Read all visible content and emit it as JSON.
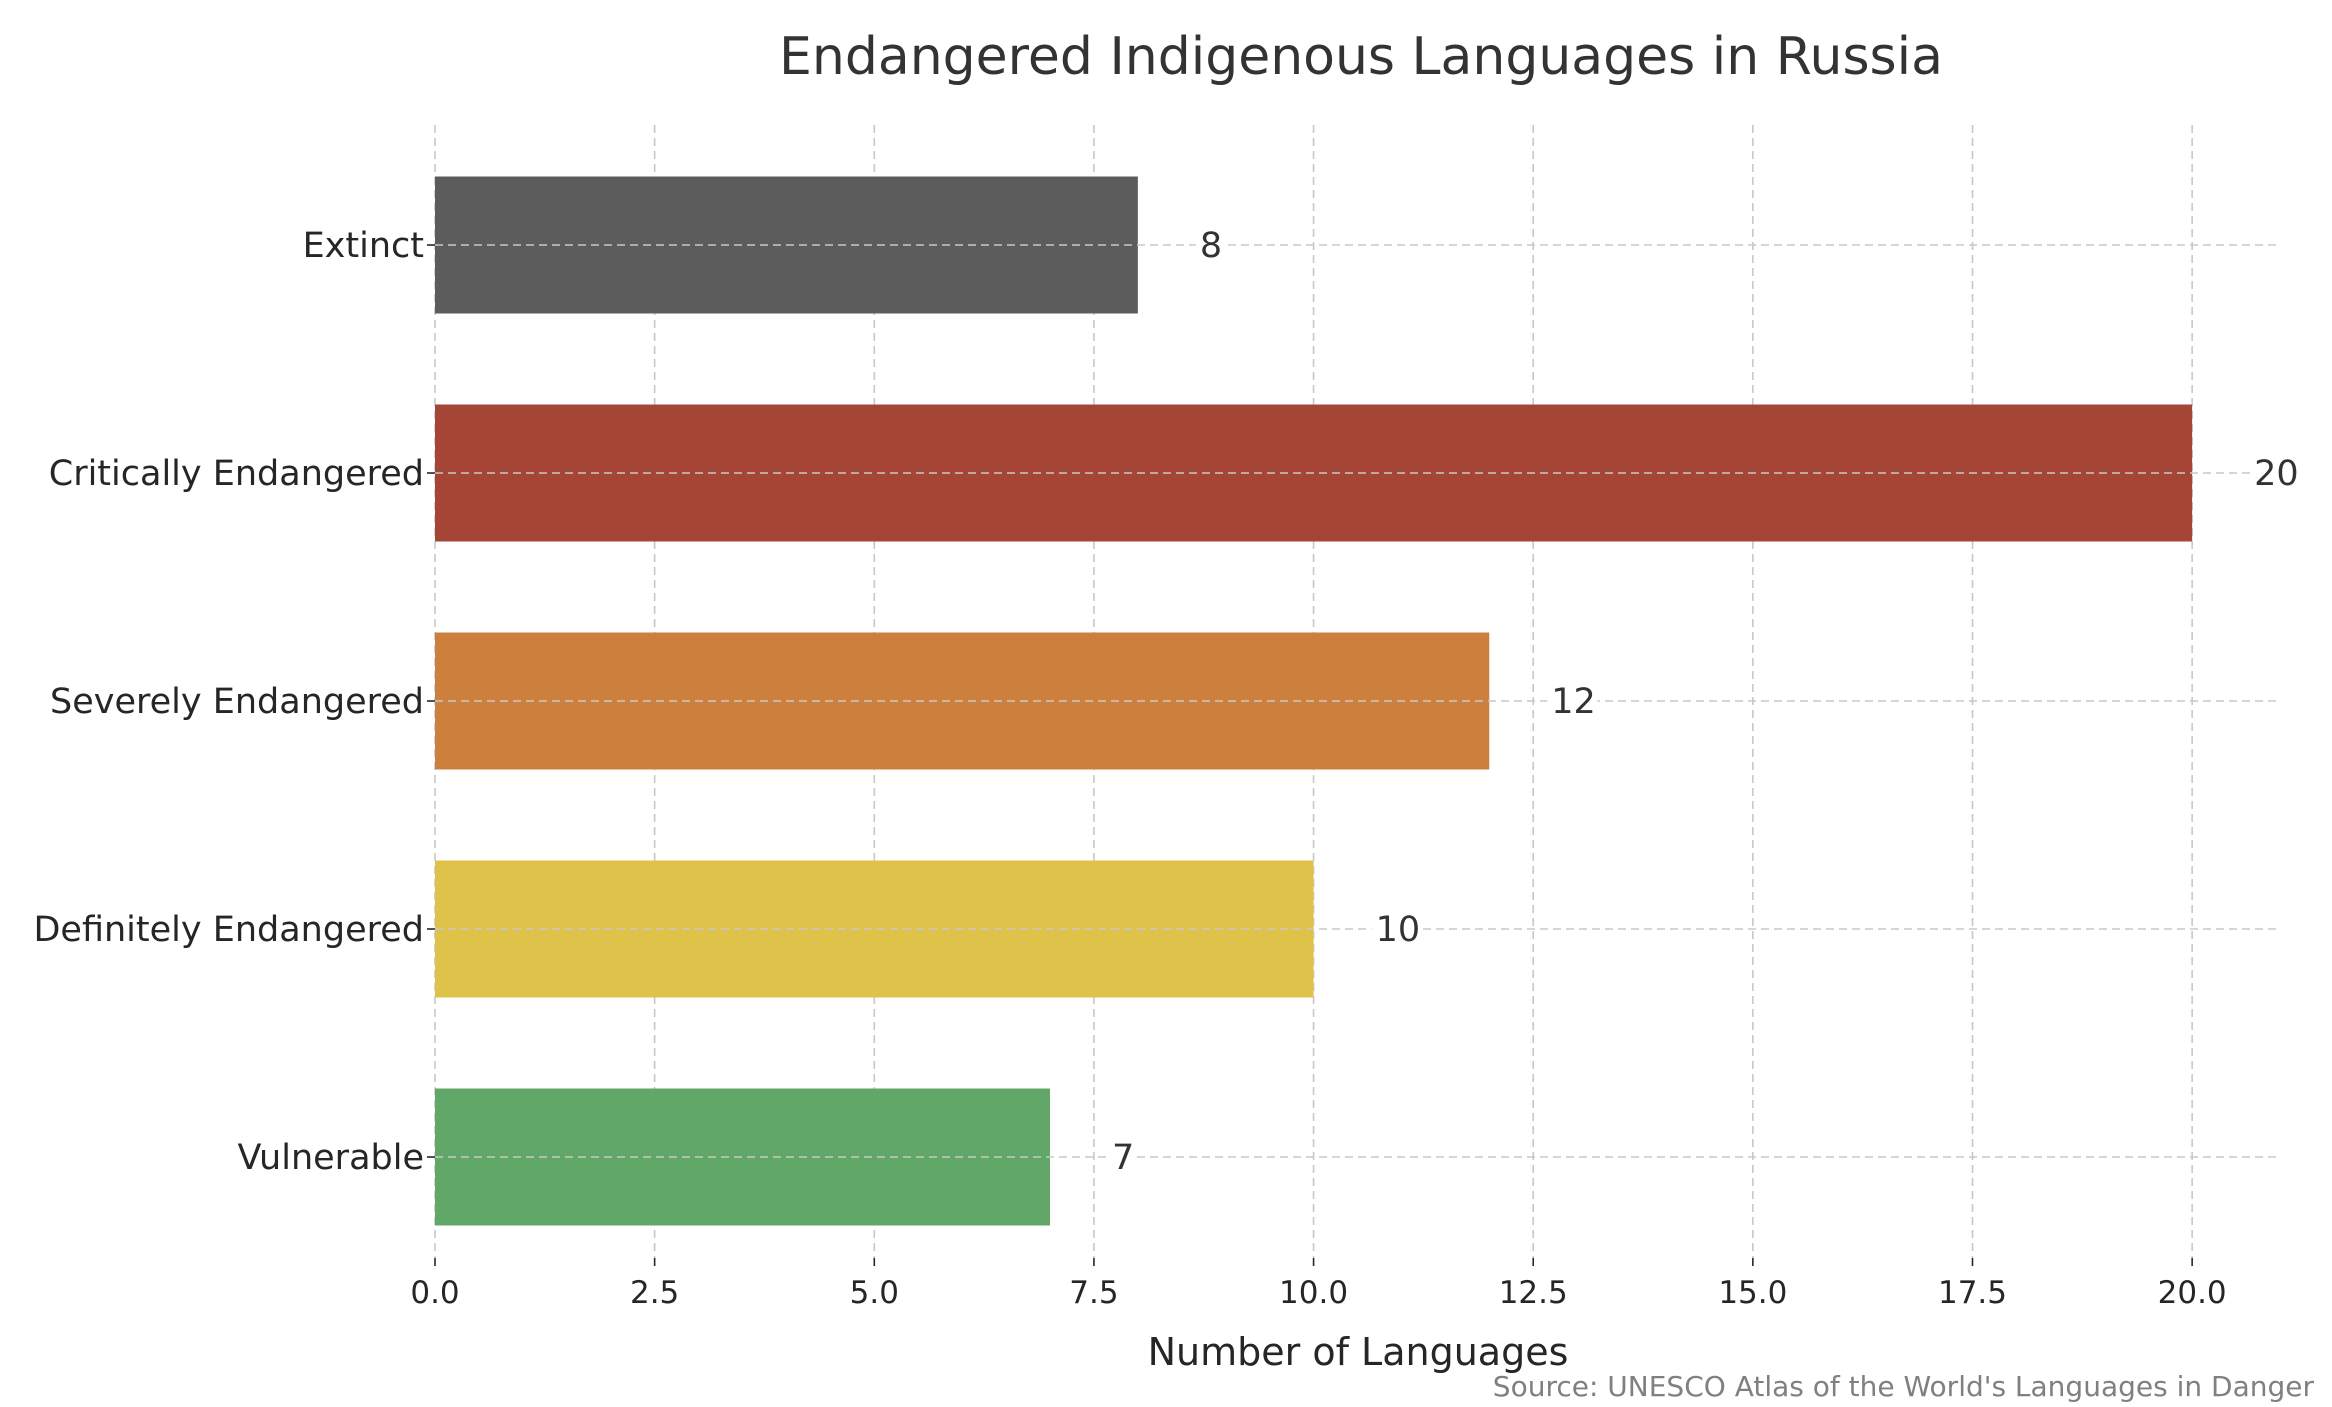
{
  "chart_data": {
    "type": "bar",
    "orientation": "horizontal",
    "title": "Endangered Indigenous Languages in Russia",
    "xlabel": "Number of Languages",
    "ylabel": "",
    "categories": [
      "Extinct",
      "Critically Endangered",
      "Severely Endangered",
      "Definitely Endangered",
      "Vulnerable"
    ],
    "values": [
      8,
      20,
      12,
      10,
      7
    ],
    "value_labels": [
      "8",
      "20",
      "12",
      "10",
      "7"
    ],
    "colors": [
      "#5b5c5b",
      "#a44535",
      "#cd803d",
      "#dfc249",
      "#61a768"
    ],
    "xlim": [
      0,
      21
    ],
    "xticks": [
      0,
      2.5,
      5,
      7.5,
      10,
      12.5,
      15,
      17.5,
      20
    ],
    "xtick_labels": [
      "0.0",
      "2.5",
      "5.0",
      "7.5",
      "10.0",
      "12.5",
      "15.0",
      "17.5",
      "20.0"
    ],
    "grid": true,
    "source": "Source: UNESCO Atlas of the World's Languages in Danger"
  }
}
